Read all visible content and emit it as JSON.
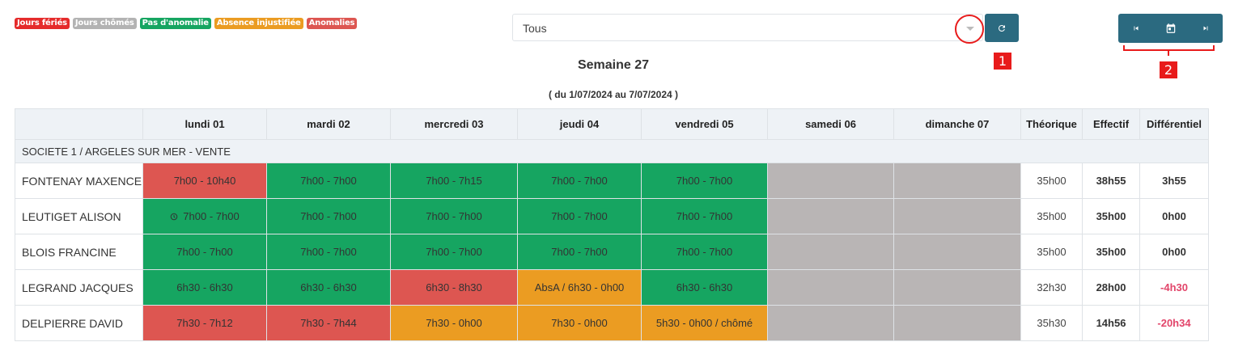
{
  "legend": [
    {
      "label": "Jours fériés",
      "color": "#e52b2b"
    },
    {
      "label": "Jours chômés",
      "color": "#b3b3b3"
    },
    {
      "label": "Pas d'anomalie",
      "color": "#16a561"
    },
    {
      "label": "Absence injustifiée",
      "color": "#eb9c22"
    },
    {
      "label": "Anomalies",
      "color": "#dd5651"
    }
  ],
  "filter": {
    "value": "Tous"
  },
  "annotations": {
    "label_1": "1",
    "label_2": "2"
  },
  "week": {
    "title": "Semaine 27",
    "range": "( du 1/07/2024 au 7/07/2024 )"
  },
  "columns": [
    "",
    "lundi 01",
    "mardi 02",
    "mercredi 03",
    "jeudi 04",
    "vendredi 05",
    "samedi 06",
    "dimanche 07",
    "Théorique",
    "Effectif",
    "Différentiel"
  ],
  "group": "SOCIETE 1 / ARGELES SUR MER - VENTE",
  "employees": [
    {
      "name": "FONTENAY MAXENCE",
      "days": [
        {
          "text": "7h00 - 10h40",
          "status": "red"
        },
        {
          "text": "7h00 - 7h00",
          "status": "green"
        },
        {
          "text": "7h00 - 7h15",
          "status": "green"
        },
        {
          "text": "7h00 - 7h00",
          "status": "green"
        },
        {
          "text": "7h00 - 7h00",
          "status": "green"
        },
        {
          "text": "",
          "status": "grey"
        },
        {
          "text": "",
          "status": "grey"
        }
      ],
      "theorique": "35h00",
      "effectif": "38h55",
      "differentiel": "3h55",
      "negative": false
    },
    {
      "name": "LEUTIGET ALISON",
      "days": [
        {
          "text": "7h00 - 7h00",
          "status": "green",
          "icon": "clock-icon"
        },
        {
          "text": "7h00 - 7h00",
          "status": "green"
        },
        {
          "text": "7h00 - 7h00",
          "status": "green"
        },
        {
          "text": "7h00 - 7h00",
          "status": "green"
        },
        {
          "text": "7h00 - 7h00",
          "status": "green"
        },
        {
          "text": "",
          "status": "grey"
        },
        {
          "text": "",
          "status": "grey"
        }
      ],
      "theorique": "35h00",
      "effectif": "35h00",
      "differentiel": "0h00",
      "negative": false
    },
    {
      "name": "BLOIS FRANCINE",
      "days": [
        {
          "text": "7h00 - 7h00",
          "status": "green"
        },
        {
          "text": "7h00 - 7h00",
          "status": "green"
        },
        {
          "text": "7h00 - 7h00",
          "status": "green"
        },
        {
          "text": "7h00 - 7h00",
          "status": "green"
        },
        {
          "text": "7h00 - 7h00",
          "status": "green"
        },
        {
          "text": "",
          "status": "grey"
        },
        {
          "text": "",
          "status": "grey"
        }
      ],
      "theorique": "35h00",
      "effectif": "35h00",
      "differentiel": "0h00",
      "negative": false
    },
    {
      "name": "LEGRAND JACQUES",
      "days": [
        {
          "text": "6h30 - 6h30",
          "status": "green"
        },
        {
          "text": "6h30 - 6h30",
          "status": "green"
        },
        {
          "text": "6h30 - 8h30",
          "status": "red"
        },
        {
          "text": "AbsA / 6h30 - 0h00",
          "status": "orange"
        },
        {
          "text": "6h30 - 6h30",
          "status": "green"
        },
        {
          "text": "",
          "status": "grey"
        },
        {
          "text": "",
          "status": "grey"
        }
      ],
      "theorique": "32h30",
      "effectif": "28h00",
      "differentiel": "-4h30",
      "negative": true
    },
    {
      "name": "DELPIERRE DAVID",
      "days": [
        {
          "text": "7h30 - 7h12",
          "status": "red"
        },
        {
          "text": "7h30 - 7h44",
          "status": "red"
        },
        {
          "text": "7h30 - 0h00",
          "status": "orange"
        },
        {
          "text": "7h30 - 0h00",
          "status": "orange"
        },
        {
          "text": "5h30 - 0h00 / chômé",
          "status": "orange"
        },
        {
          "text": "",
          "status": "grey"
        },
        {
          "text": "",
          "status": "grey"
        }
      ],
      "theorique": "35h30",
      "effectif": "14h56",
      "differentiel": "-20h34",
      "negative": true
    }
  ],
  "icons": {
    "refresh": "refresh-icon",
    "first": "skip-previous-icon",
    "calendar": "calendar-icon",
    "last": "skip-next-icon",
    "caret": "chevron-down-icon"
  }
}
